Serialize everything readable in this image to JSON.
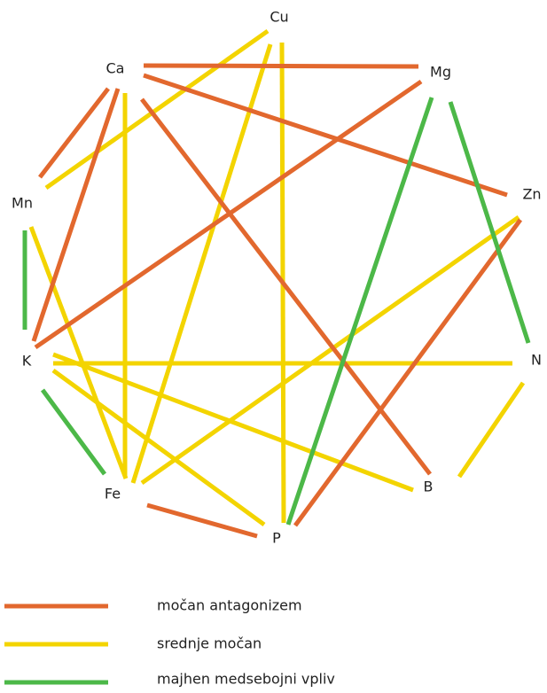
{
  "nodes": [
    {
      "label": "Cu"
    },
    {
      "label": "Ca"
    },
    {
      "label": "Mg"
    },
    {
      "label": "Zn"
    },
    {
      "label": "Mn"
    },
    {
      "label": "N"
    },
    {
      "label": "K"
    },
    {
      "label": "B"
    },
    {
      "label": "Fe"
    },
    {
      "label": "P"
    }
  ],
  "legend": [
    {
      "label": "močan antagonizem"
    },
    {
      "label": "srednje močan"
    },
    {
      "label": "majhen medsebojni vpliv"
    }
  ]
}
